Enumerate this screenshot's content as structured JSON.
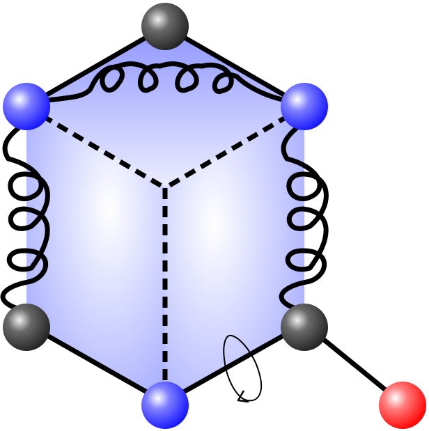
{
  "diagram": {
    "nodes": [
      {
        "id": "top",
        "type": "dark"
      },
      {
        "id": "upper-left",
        "type": "blue"
      },
      {
        "id": "upper-right",
        "type": "blue"
      },
      {
        "id": "lower-left",
        "type": "dark"
      },
      {
        "id": "lower-right",
        "type": "dark"
      },
      {
        "id": "bottom",
        "type": "blue"
      },
      {
        "id": "external",
        "type": "red"
      }
    ],
    "edges": [
      {
        "from": "top",
        "to": "upper-left",
        "style": "solid"
      },
      {
        "from": "top",
        "to": "upper-right",
        "style": "solid"
      },
      {
        "from": "upper-left",
        "to": "upper-right",
        "style": "coil"
      },
      {
        "from": "upper-left",
        "to": "lower-left",
        "style": "coil"
      },
      {
        "from": "upper-right",
        "to": "lower-right",
        "style": "coil"
      },
      {
        "from": "lower-left",
        "to": "bottom",
        "style": "solid"
      },
      {
        "from": "bottom",
        "to": "lower-right",
        "style": "solid"
      },
      {
        "from": "lower-right",
        "to": "external",
        "style": "solid"
      },
      {
        "from": "upper-left",
        "to": "center",
        "style": "dashed"
      },
      {
        "from": "upper-right",
        "to": "center",
        "style": "dashed"
      },
      {
        "from": "center",
        "to": "bottom",
        "style": "dashed"
      }
    ],
    "colors": {
      "face_fill": "#b7bcff",
      "face_light": "#ffffff",
      "line": "#000000",
      "blue_node": "#2a2aff",
      "dark_node": "#444444",
      "red_node": "#ff1e1e"
    },
    "rotation_indicator": "counter-clockwise-rotation-arrow"
  }
}
